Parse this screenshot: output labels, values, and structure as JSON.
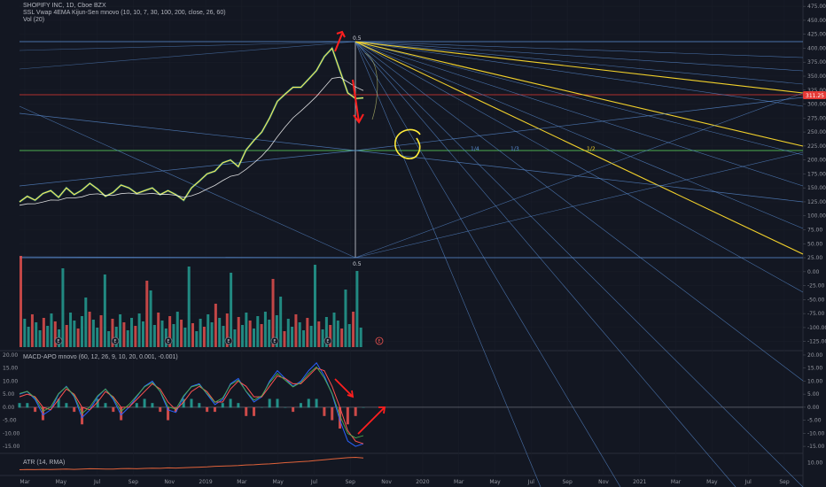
{
  "legends": {
    "symbol": "SHOPIFY INC, 1D, Cboe BZX",
    "indicator1": "SSL Vwap 4EMA Kijun-Sen mnovo (10, 10, 7, 30, 100, 200, close, 26, 60)",
    "volume": "Vol (20)",
    "macd": "MACD-APO mnovo (60, 12, 26, 9, 10, 20, 0.001, -0.001)",
    "atr": "ATR (14, RMA)"
  },
  "price_badge": "311.25",
  "earnings_marker": "E",
  "fan_labels": {
    "top": "0.5",
    "bottom": "0.5",
    "r14": "1/4",
    "r13": "1/3",
    "r12": "1/2"
  },
  "colors": {
    "background": "#131722",
    "grid": "#1e222d",
    "price_line": "#ffee58",
    "fan_blue": "#5b8fd6",
    "fan_yellow": "#f2d12b",
    "horizontal_green": "#4caf50",
    "horizontal_red": "#e53935",
    "annotation_red": "#ff1f1f",
    "annotation_yellow": "#ffeb3b",
    "volume_up": "#26a69a",
    "volume_down": "#ef5350",
    "atr_line": "#e0623a"
  },
  "chart_data": [
    {
      "type": "line",
      "pane": "price",
      "x_axis_labels": [
        "Mar",
        "May",
        "Jul",
        "Sep",
        "Nov",
        "2019",
        "Mar",
        "May",
        "Jul",
        "Sep",
        "Nov",
        "2020",
        "Mar",
        "May",
        "Jul",
        "Sep",
        "Nov",
        "2021",
        "Mar",
        "May",
        "Jul",
        "Sep"
      ],
      "y_ticks": [
        "475.00",
        "450.00",
        "425.00",
        "400.00",
        "375.00",
        "350.00",
        "325.00",
        "300.00",
        "275.00",
        "250.00",
        "225.00",
        "200.00",
        "175.00",
        "150.00",
        "125.00",
        "100.00",
        "75.00",
        "50.00",
        "25.00",
        "0.00",
        "-25.00",
        "-50.00",
        "-75.00",
        "-100.00",
        "-125.00"
      ],
      "ylim": [
        -135,
        480
      ],
      "close": [
        125,
        135,
        128,
        140,
        145,
        133,
        150,
        138,
        146,
        158,
        148,
        135,
        142,
        155,
        150,
        140,
        145,
        150,
        138,
        145,
        138,
        128,
        150,
        162,
        175,
        180,
        195,
        200,
        188,
        218,
        235,
        250,
        275,
        305,
        318,
        330,
        330,
        345,
        360,
        385,
        400,
        360,
        320,
        310,
        311
      ]
    },
    {
      "type": "line",
      "pane": "macd",
      "y_ticks": [
        "20.00",
        "15.00",
        "10.00",
        "5.00",
        "0.00",
        "-5.00",
        "-10.00",
        "-15.00"
      ],
      "ylim": [
        -17,
        21
      ],
      "fast": [
        5,
        6,
        3,
        -3,
        -1,
        5,
        8,
        4,
        -4,
        -1,
        4,
        7,
        3,
        -3,
        0,
        4,
        8,
        10,
        6,
        -1,
        -2,
        4,
        8,
        9,
        5,
        1,
        3,
        9,
        11,
        6,
        2,
        4,
        10,
        14,
        11,
        8,
        10,
        14,
        17,
        12,
        5,
        -5,
        -13,
        -15,
        -14
      ],
      "signal": [
        4,
        5,
        4,
        0,
        -1,
        3,
        7,
        5,
        0,
        -1,
        2,
        6,
        4,
        0,
        0,
        3,
        6,
        9,
        7,
        2,
        -1,
        2,
        6,
        8,
        6,
        2,
        2,
        7,
        10,
        8,
        4,
        4,
        8,
        12,
        11,
        9,
        9,
        12,
        15,
        14,
        8,
        0,
        -9,
        -13,
        -14
      ]
    },
    {
      "type": "line",
      "pane": "atr",
      "y_ticks": [
        "10.00"
      ],
      "ylim": [
        0,
        16
      ],
      "values": [
        4,
        4.2,
        4.1,
        4.3,
        4.2,
        4.4,
        4.5,
        4.3,
        4.6,
        4.8,
        4.7,
        4.5,
        4.6,
        4.9,
        5,
        4.8,
        5.1,
        5.3,
        5.2,
        5.5,
        5.4,
        5.6,
        5.9,
        6.1,
        6.3,
        6.8,
        7,
        7.2,
        7.4,
        7.9,
        8.1,
        8.5,
        8.8,
        9.3,
        9.8,
        10.2,
        10.6,
        11,
        11.6,
        12.2,
        12.8,
        13.4,
        13.9,
        14.2,
        13.6
      ]
    }
  ]
}
